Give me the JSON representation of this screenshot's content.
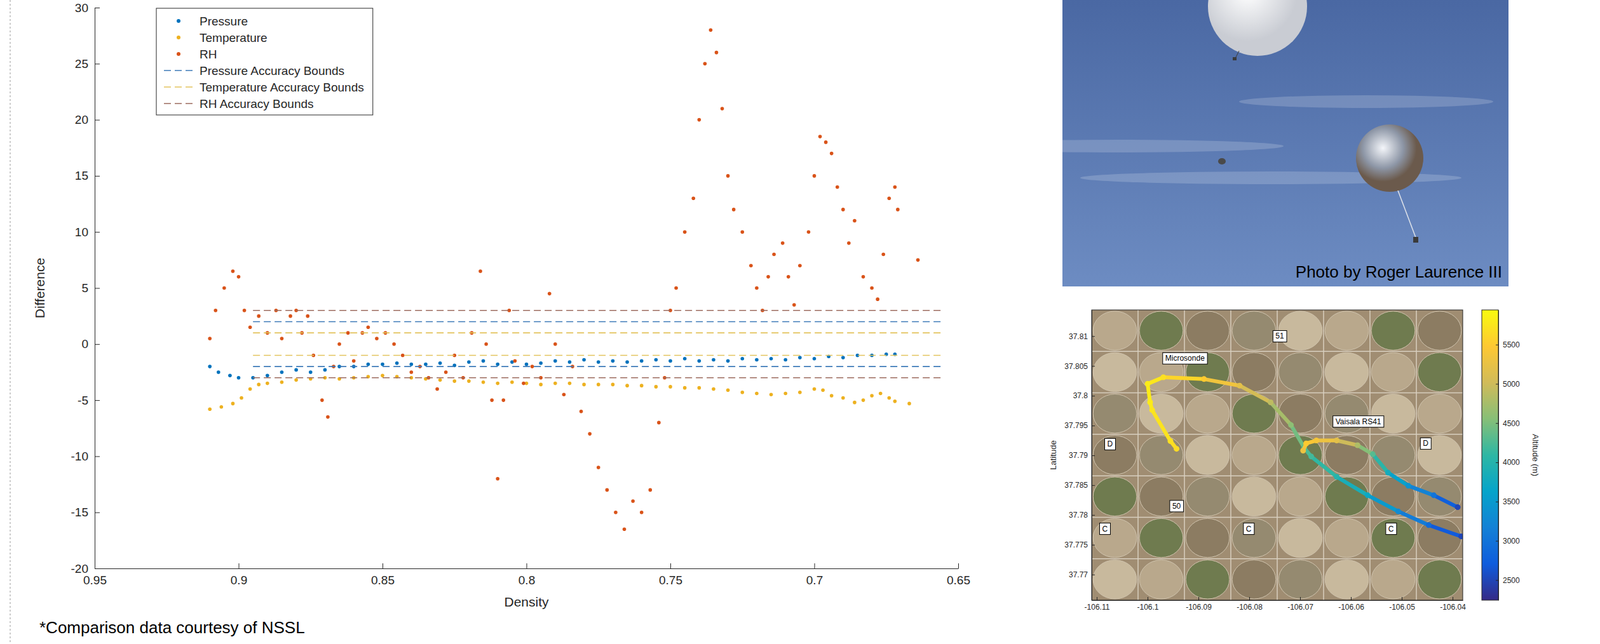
{
  "chart_data": [
    {
      "type": "scatter",
      "x_label": "Density",
      "y_label": "Difference",
      "xlim": [
        0.95,
        0.65
      ],
      "ylim": [
        -20,
        30
      ],
      "xticks": [
        0.95,
        0.9,
        0.85,
        0.8,
        0.75,
        0.7,
        0.65
      ],
      "yticks": [
        -20,
        -15,
        -10,
        -5,
        0,
        5,
        10,
        15,
        20,
        25,
        30
      ],
      "legend": "upper left",
      "series": [
        {
          "name": "Pressure",
          "type": "scatter",
          "marker": "point",
          "color": "#0072bd",
          "x": [
            0.91,
            0.907,
            0.903,
            0.9,
            0.895,
            0.89,
            0.885,
            0.88,
            0.875,
            0.87,
            0.865,
            0.86,
            0.855,
            0.85,
            0.845,
            0.84,
            0.835,
            0.83,
            0.825,
            0.82,
            0.815,
            0.81,
            0.805,
            0.8,
            0.795,
            0.79,
            0.785,
            0.78,
            0.775,
            0.77,
            0.765,
            0.76,
            0.755,
            0.75,
            0.745,
            0.74,
            0.735,
            0.73,
            0.725,
            0.72,
            0.715,
            0.71,
            0.705,
            0.7,
            0.695,
            0.69,
            0.685,
            0.68,
            0.675,
            0.672
          ],
          "values": [
            -2,
            -2.5,
            -2.8,
            -3,
            -3,
            -2.8,
            -2.5,
            -2.3,
            -2.5,
            -2.3,
            -2,
            -2,
            -1.8,
            -1.8,
            -1.7,
            -1.8,
            -1.8,
            -1.7,
            -1.9,
            -1.6,
            -1.5,
            -1.8,
            -1.6,
            -1.8,
            -1.7,
            -1.5,
            -1.6,
            -1.4,
            -1.6,
            -1.5,
            -1.6,
            -1.5,
            -1.4,
            -1.5,
            -1.3,
            -1.5,
            -1.4,
            -1.5,
            -1.3,
            -1.4,
            -1.3,
            -1.4,
            -1.2,
            -1.3,
            -1.1,
            -1.2,
            -1,
            -1,
            -0.9,
            -0.9
          ]
        },
        {
          "name": "Temperature",
          "type": "scatter",
          "marker": "point",
          "color": "#edb120",
          "x": [
            0.91,
            0.906,
            0.902,
            0.899,
            0.896,
            0.893,
            0.89,
            0.885,
            0.88,
            0.875,
            0.87,
            0.865,
            0.86,
            0.855,
            0.85,
            0.845,
            0.84,
            0.835,
            0.83,
            0.825,
            0.82,
            0.815,
            0.81,
            0.805,
            0.8,
            0.795,
            0.79,
            0.785,
            0.78,
            0.775,
            0.77,
            0.765,
            0.76,
            0.755,
            0.75,
            0.745,
            0.74,
            0.735,
            0.73,
            0.725,
            0.72,
            0.715,
            0.71,
            0.705,
            0.7,
            0.697,
            0.694,
            0.69,
            0.686,
            0.683,
            0.68,
            0.677,
            0.674,
            0.672,
            0.667
          ],
          "values": [
            -5.8,
            -5.6,
            -5.3,
            -4.8,
            -4,
            -3.6,
            -3.5,
            -3.4,
            -3.2,
            -3.1,
            -3,
            -3.1,
            -3,
            -2.9,
            -2.8,
            -2.9,
            -3,
            -3.1,
            -3.2,
            -3.3,
            -3.3,
            -3.4,
            -3.5,
            -3.4,
            -3.5,
            -3.6,
            -3.5,
            -3.5,
            -3.6,
            -3.6,
            -3.6,
            -3.7,
            -3.7,
            -3.8,
            -3.8,
            -3.9,
            -3.9,
            -4,
            -4.1,
            -4.3,
            -4.4,
            -4.5,
            -4.4,
            -4.3,
            -4,
            -4.1,
            -4.6,
            -4.8,
            -5.2,
            -5,
            -4.6,
            -4.4,
            -4.8,
            -5.1,
            -5.3
          ]
        },
        {
          "name": "RH",
          "type": "scatter",
          "marker": "point",
          "color": "#d95319",
          "x": [
            0.91,
            0.908,
            0.905,
            0.902,
            0.9,
            0.898,
            0.896,
            0.893,
            0.89,
            0.887,
            0.885,
            0.882,
            0.88,
            0.878,
            0.876,
            0.874,
            0.871,
            0.869,
            0.867,
            0.865,
            0.862,
            0.86,
            0.857,
            0.855,
            0.852,
            0.849,
            0.846,
            0.843,
            0.84,
            0.837,
            0.834,
            0.831,
            0.828,
            0.825,
            0.822,
            0.819,
            0.816,
            0.814,
            0.812,
            0.81,
            0.808,
            0.806,
            0.804,
            0.801,
            0.798,
            0.795,
            0.792,
            0.79,
            0.787,
            0.784,
            0.781,
            0.778,
            0.775,
            0.772,
            0.769,
            0.766,
            0.763,
            0.76,
            0.757,
            0.754,
            0.752,
            0.75,
            0.748,
            0.745,
            0.742,
            0.74,
            0.738,
            0.736,
            0.734,
            0.732,
            0.73,
            0.728,
            0.725,
            0.722,
            0.72,
            0.718,
            0.716,
            0.714,
            0.711,
            0.709,
            0.707,
            0.705,
            0.702,
            0.7,
            0.698,
            0.696,
            0.694,
            0.692,
            0.69,
            0.688,
            0.686,
            0.683,
            0.68,
            0.678,
            0.676,
            0.674,
            0.672,
            0.671,
            0.664
          ],
          "values": [
            0.5,
            3,
            5,
            6.5,
            6,
            3,
            1.5,
            2.5,
            1,
            3,
            0.5,
            2.5,
            3,
            1,
            2.5,
            -1,
            -5,
            -6.5,
            -2,
            0,
            1,
            -1.5,
            1,
            1.5,
            0.5,
            1,
            0,
            -1,
            -2.5,
            -2,
            -3,
            -4,
            -2.5,
            -1,
            -3,
            1,
            6.5,
            0,
            -5,
            -12,
            -5,
            3,
            -1.5,
            -3.5,
            -2,
            -3,
            4.5,
            0,
            -4.5,
            -2,
            -6,
            -8,
            -11,
            -13,
            -15,
            -16.5,
            -14,
            -15,
            -13,
            -7,
            -3,
            3,
            5,
            10,
            13,
            20,
            25,
            28,
            26,
            21,
            15,
            12,
            10,
            7,
            5,
            3,
            6,
            8,
            9,
            6,
            3.5,
            7,
            10,
            15,
            18.5,
            18,
            17,
            14,
            12,
            9,
            11,
            6,
            5,
            4,
            8,
            13,
            14,
            12,
            7.5
          ]
        },
        {
          "name": "Pressure Accuracy Bounds",
          "type": "line",
          "line_style": "dashed",
          "color": "#3d7ab8",
          "x": [
            0.895,
            0.655,
            null,
            0.895,
            0.655
          ],
          "values": [
            2,
            2,
            null,
            -2,
            -2
          ]
        },
        {
          "name": "Temperature Accuracy Bounds",
          "type": "line",
          "line_style": "dashed",
          "color": "#e3c45e",
          "x": [
            0.895,
            0.655,
            null,
            0.895,
            0.655
          ],
          "values": [
            1,
            1,
            null,
            -1,
            -1
          ]
        },
        {
          "name": "RH Accuracy Bounds",
          "type": "line",
          "line_style": "dashed",
          "color": "#9c6b5e",
          "x": [
            0.895,
            0.655,
            null,
            0.895,
            0.655
          ],
          "values": [
            3,
            3,
            null,
            -3,
            -3
          ]
        }
      ]
    },
    {
      "type": "scatter",
      "y_label": "Latitude",
      "colorbar_label": "Altitude (m)",
      "xlim": [
        -106.111,
        -106.038
      ],
      "ylim": [
        37.7657,
        37.8144
      ],
      "xticks": [
        -106.11,
        -106.1,
        -106.09,
        -106.08,
        -106.07,
        -106.06,
        -106.05,
        -106.04
      ],
      "yticks": [
        37.77,
        37.775,
        37.78,
        37.785,
        37.79,
        37.795,
        37.8,
        37.805,
        37.81
      ],
      "color_range": [
        2244,
        5942
      ],
      "color_ticks": [
        2500,
        3000,
        3500,
        4000,
        4500,
        5000,
        5500
      ],
      "series": [
        {
          "name": "Microsonde",
          "marker": "point",
          "x": [
            -106.0383,
            -106.0447,
            -106.0507,
            -106.0567,
            -106.0628,
            -106.0678,
            -106.0692,
            -106.0718,
            -106.0758,
            -106.0819,
            -106.0889,
            -106.0969,
            -106.1,
            -106.0995,
            -106.0991,
            -106.0955,
            -106.0943
          ],
          "values": [
            37.7764,
            37.7783,
            37.7806,
            37.7833,
            37.7864,
            37.7898,
            37.7913,
            37.7951,
            37.7989,
            37.8017,
            37.8028,
            37.8031,
            37.802,
            37.7989,
            37.7976,
            37.7924,
            37.7911
          ],
          "altitude": [
            2500,
            2900,
            3300,
            3700,
            4000,
            4200,
            4300,
            4600,
            4900,
            5200,
            5500,
            5700,
            5800,
            5800,
            5750,
            5700,
            5650
          ]
        },
        {
          "name": "Vaisala RS41",
          "marker": "point",
          "x": [
            -106.039,
            -106.0437,
            -106.0487,
            -106.0527,
            -106.0557,
            -106.0587,
            -106.0628,
            -106.0668,
            -106.0688,
            -106.0694
          ],
          "values": [
            37.7813,
            37.7833,
            37.7849,
            37.7871,
            37.7902,
            37.7917,
            37.7925,
            37.7925,
            37.792,
            37.7908
          ],
          "altitude": [
            2500,
            3000,
            3400,
            3800,
            4300,
            4800,
            5200,
            5400,
            5500,
            5300
          ]
        }
      ],
      "annotations": [
        {
          "text": "51",
          "x": -106.074,
          "y": 37.81
        },
        {
          "text": "D",
          "x": -106.1074,
          "y": 37.7919
        },
        {
          "text": "D",
          "x": -106.0453,
          "y": 37.792
        },
        {
          "text": "50",
          "x": -106.0943,
          "y": 37.7815
        },
        {
          "text": "C",
          "x": -106.1084,
          "y": 37.7777
        },
        {
          "text": "C",
          "x": -106.0801,
          "y": 37.7777
        },
        {
          "text": "C",
          "x": -106.0521,
          "y": 37.7777
        }
      ]
    }
  ],
  "photo": {
    "caption": "Photo by Roger Laurence III"
  },
  "footnote": "*Comparison data courtesy of NSSL"
}
